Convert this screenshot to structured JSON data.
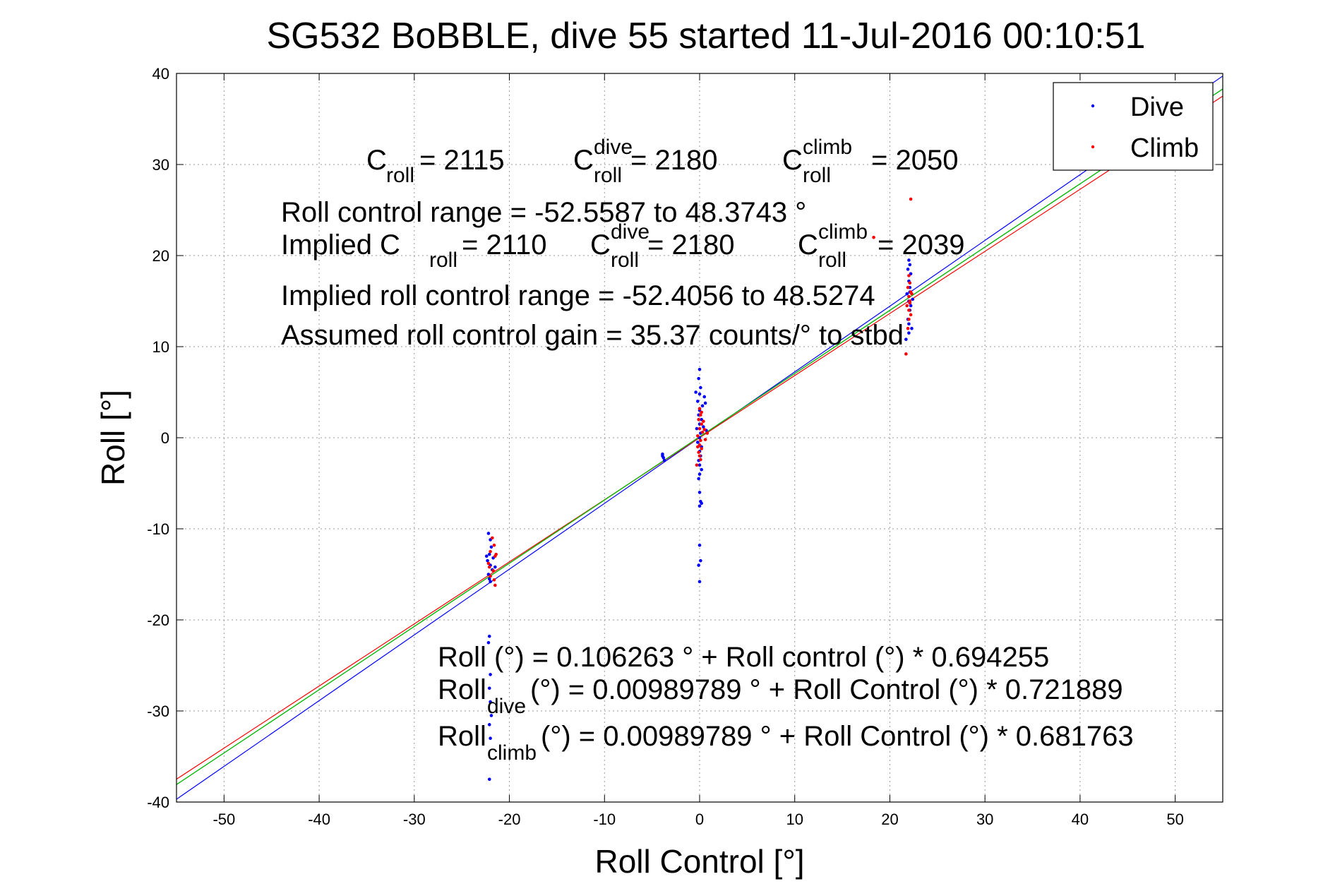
{
  "chart_data": {
    "type": "scatter",
    "title": "SG532 BoBBLE, dive 55 started 11-Jul-2016 00:10:51",
    "xlabel": "Roll Control [°]",
    "ylabel": "Roll [°]",
    "xlim": [
      -55,
      55
    ],
    "ylim": [
      -40,
      40
    ],
    "x_ticks": [
      -50,
      -40,
      -30,
      -20,
      -10,
      0,
      10,
      20,
      30,
      40,
      50
    ],
    "y_ticks": [
      -40,
      -30,
      -20,
      -10,
      0,
      10,
      20,
      30,
      40
    ],
    "grid": true,
    "legend": {
      "position": "top-right",
      "entries": [
        {
          "label": "Dive",
          "color": "#0000ff"
        },
        {
          "label": "Climb",
          "color": "#ff0000"
        }
      ]
    },
    "series": [
      {
        "name": "Dive",
        "color": "#0000ff",
        "points": [
          [
            -22.2,
            -10.5
          ],
          [
            -22.0,
            -11.2
          ],
          [
            -21.9,
            -12.0
          ],
          [
            -22.1,
            -12.8
          ],
          [
            -22.3,
            -13.5
          ],
          [
            -22.0,
            -14.0
          ],
          [
            -21.8,
            -14.5
          ],
          [
            -22.2,
            -15.0
          ],
          [
            -22.1,
            -15.5
          ],
          [
            -21.7,
            -13.2
          ],
          [
            -21.5,
            -14.2
          ],
          [
            -22.4,
            -13.0
          ],
          [
            -22.0,
            -15.8
          ],
          [
            -22.1,
            -21.8
          ],
          [
            -22.2,
            -22.5
          ],
          [
            -22.0,
            -26.0
          ],
          [
            -22.1,
            -27.5
          ],
          [
            -22.0,
            -29.0
          ],
          [
            -21.9,
            -30.5
          ],
          [
            -22.1,
            -31.5
          ],
          [
            -22.0,
            -33.0
          ],
          [
            -22.1,
            -37.5
          ],
          [
            -3.9,
            -1.8
          ],
          [
            -3.8,
            -2.2
          ],
          [
            -3.7,
            -2.5
          ],
          [
            -3.9,
            -2.0
          ],
          [
            0.0,
            7.5
          ],
          [
            -0.1,
            6.5
          ],
          [
            0.1,
            5.5
          ],
          [
            0.0,
            4.8
          ],
          [
            -0.2,
            4.0
          ],
          [
            0.3,
            3.5
          ],
          [
            0.0,
            3.0
          ],
          [
            -0.1,
            2.5
          ],
          [
            0.2,
            2.0
          ],
          [
            0.0,
            1.5
          ],
          [
            0.4,
            1.2
          ],
          [
            -0.3,
            1.0
          ],
          [
            0.1,
            0.5
          ],
          [
            0.0,
            0.0
          ],
          [
            -0.2,
            -0.5
          ],
          [
            0.2,
            -1.0
          ],
          [
            0.0,
            -1.5
          ],
          [
            0.1,
            -2.0
          ],
          [
            -0.1,
            -2.5
          ],
          [
            0.0,
            -3.0
          ],
          [
            0.2,
            -3.5
          ],
          [
            0.0,
            -4.0
          ],
          [
            -0.1,
            -4.5
          ],
          [
            0.0,
            -6.0
          ],
          [
            0.1,
            -7.0
          ],
          [
            0.0,
            -7.5
          ],
          [
            0.2,
            -7.2
          ],
          [
            0.0,
            -11.8
          ],
          [
            0.1,
            -13.5
          ],
          [
            -0.1,
            -14.0
          ],
          [
            0.0,
            -15.8
          ],
          [
            0.5,
            4.5
          ],
          [
            0.6,
            3.8
          ],
          [
            0.7,
            0.8
          ],
          [
            -0.4,
            5.0
          ],
          [
            22.0,
            19.5
          ],
          [
            22.1,
            19.0
          ],
          [
            21.9,
            18.5
          ],
          [
            22.2,
            18.0
          ],
          [
            22.0,
            17.2
          ],
          [
            22.1,
            16.5
          ],
          [
            21.8,
            15.8
          ],
          [
            22.0,
            15.0
          ],
          [
            22.2,
            14.5
          ],
          [
            22.1,
            14.0
          ],
          [
            21.9,
            13.0
          ],
          [
            22.0,
            12.5
          ],
          [
            22.3,
            12.0
          ],
          [
            22.0,
            11.5
          ],
          [
            21.7,
            10.8
          ],
          [
            22.1,
            16.0
          ],
          [
            22.4,
            15.2
          ]
        ]
      },
      {
        "name": "Climb",
        "color": "#ff0000",
        "points": [
          [
            -21.8,
            -11.0
          ],
          [
            -21.6,
            -11.8
          ],
          [
            -22.0,
            -12.5
          ],
          [
            -21.5,
            -13.0
          ],
          [
            -22.2,
            -13.8
          ],
          [
            -21.7,
            -14.6
          ],
          [
            -22.0,
            -15.2
          ],
          [
            -21.6,
            -15.6
          ],
          [
            -21.5,
            -16.2
          ],
          [
            -22.1,
            -14.2
          ],
          [
            -21.4,
            -12.8
          ],
          [
            0.0,
            3.2
          ],
          [
            0.1,
            2.5
          ],
          [
            -0.1,
            2.0
          ],
          [
            0.2,
            1.5
          ],
          [
            0.0,
            1.0
          ],
          [
            0.3,
            0.6
          ],
          [
            -0.2,
            0.2
          ],
          [
            0.1,
            -0.3
          ],
          [
            0.0,
            -0.8
          ],
          [
            0.2,
            -1.2
          ],
          [
            -0.1,
            -1.6
          ],
          [
            0.0,
            -2.0
          ],
          [
            0.1,
            -2.4
          ],
          [
            -0.3,
            -3.0
          ],
          [
            0.4,
            1.8
          ],
          [
            0.5,
            0.9
          ],
          [
            0.6,
            -0.2
          ],
          [
            0.2,
            2.8
          ],
          [
            -0.2,
            -1.0
          ],
          [
            0.8,
            0.5
          ],
          [
            22.0,
            17.8
          ],
          [
            22.1,
            17.0
          ],
          [
            21.9,
            16.5
          ],
          [
            22.2,
            16.0
          ],
          [
            22.0,
            15.5
          ],
          [
            22.1,
            15.0
          ],
          [
            21.8,
            14.5
          ],
          [
            22.0,
            14.0
          ],
          [
            22.2,
            13.5
          ],
          [
            22.0,
            13.0
          ],
          [
            21.9,
            12.0
          ],
          [
            22.3,
            15.8
          ],
          [
            21.7,
            9.2
          ],
          [
            22.2,
            26.2
          ],
          [
            18.3,
            22.0
          ],
          [
            22.1,
            14.8
          ]
        ]
      }
    ],
    "fit_lines": [
      {
        "color": "#000000",
        "intercept": 0.106263,
        "slope": 0.694255
      },
      {
        "color": "#0000ff",
        "intercept": 0.00989789,
        "slope": 0.721889
      },
      {
        "color": "#ff0000",
        "intercept": 0.00989789,
        "slope": 0.681763
      },
      {
        "color": "#00cc00",
        "intercept": 0.106263,
        "slope": 0.694255
      }
    ],
    "annotations": {
      "c_roll": {
        "base": "C",
        "sub": "roll",
        "value": " = 2115"
      },
      "c_roll_dive": {
        "base": "C",
        "sup": "dive",
        "sub": "roll",
        "value": " = 2180"
      },
      "c_roll_climb": {
        "base": "C",
        "sup": "climb",
        "sub": "roll",
        "value": " = 2050"
      },
      "roll_range": "Roll control range = -52.5587 to 48.3743 °",
      "implied_c_roll": {
        "base": "Implied C",
        "sub": "roll",
        "value": " = 2110"
      },
      "implied_c_roll_dive": {
        "base": "C",
        "sup": "dive",
        "sub": "roll",
        "value": " = 2180"
      },
      "implied_c_roll_climb": {
        "base": "C",
        "sup": "climb",
        "sub": "roll",
        "value": " = 2039"
      },
      "implied_range": "Implied roll control range = -52.4056 to 48.5274",
      "gain": "Assumed roll control gain = 35.37 counts/° to stbd",
      "fit_all": "Roll (°) = 0.106263 ° + Roll control (°) * 0.694255",
      "fit_dive": {
        "base": "Roll",
        "sub": "dive",
        "value": " (°) = 0.00989789 ° + Roll Control (°) * 0.721889"
      },
      "fit_climb": {
        "base": "Roll",
        "sub": "climb",
        "value": " (°) = 0.00989789 ° + Roll Control (°) * 0.681763"
      }
    }
  }
}
